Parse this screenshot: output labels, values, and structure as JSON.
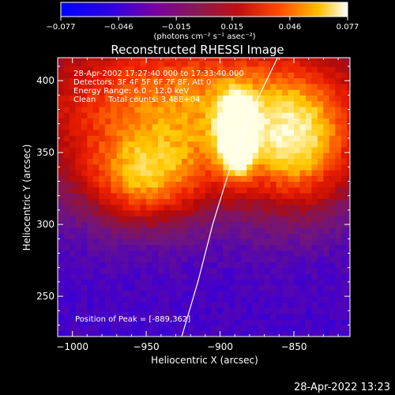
{
  "chart_data": {
    "type": "heatmap",
    "title": "Reconstructed RHESSI Image",
    "xlabel": "Heliocentric X (arcsec)",
    "ylabel": "Heliocentric Y (arcsec)",
    "xlim": [
      -1010,
      -812
    ],
    "ylim": [
      222,
      416
    ],
    "x_ticks": [
      -1000,
      -950,
      -900,
      -850
    ],
    "x_tick_labels": [
      "−1000",
      "−950",
      "−900",
      "−850"
    ],
    "y_ticks": [
      250,
      300,
      350,
      400
    ],
    "y_tick_labels": [
      "250",
      "300",
      "350",
      "400"
    ],
    "colorbar": {
      "range": [
        -0.077,
        0.077
      ],
      "ticks": [
        -0.077,
        -0.046,
        -0.015,
        0.015,
        0.046,
        0.077
      ],
      "tick_labels": [
        "−0.077",
        "−0.046",
        "−0.015",
        "0.015",
        "0.046",
        "0.077"
      ],
      "unit_text": "(photons cm⁻² s⁻¹ asec⁻²)"
    },
    "annotations": [
      "28-Apr-2002 17:27:40.000 to 17:33:40.000",
      "Detectors: 3F 4F 5F 6F 7F 8F, Att 0",
      "Energy Range: 6.0 - 12.0 keV",
      "Clean     Total counts: 3.48E+04"
    ],
    "peak_label": "Position of Peak = [-889,362]",
    "peak": {
      "x": -889,
      "y": 362
    },
    "limb_curve": [
      {
        "x": -926,
        "y": 222
      },
      {
        "x": -915,
        "y": 260
      },
      {
        "x": -905,
        "y": 300
      },
      {
        "x": -893,
        "y": 340
      },
      {
        "x": -878,
        "y": 380
      },
      {
        "x": -861,
        "y": 416
      }
    ],
    "sources": [
      {
        "x": -917,
        "y": 382,
        "sx": 90,
        "sy": 44,
        "amp": 0.046
      },
      {
        "x": -952,
        "y": 330,
        "sx": 28,
        "sy": 22,
        "amp": 0.012
      },
      {
        "x": -846,
        "y": 352,
        "sx": 26,
        "sy": 32,
        "amp": 0.012
      },
      {
        "x": -889,
        "y": 362,
        "sx": 8,
        "sy": 18,
        "amp": 0.06
      }
    ],
    "background": -0.05,
    "colors": {
      "scale": [
        "#0000ff",
        "#6a00b0",
        "#8a1a5a",
        "#c01010",
        "#ff4000",
        "#ffa000",
        "#ffff90",
        "#ffffff"
      ],
      "axes": "#ffffff"
    }
  },
  "footer": {
    "timestamp": "28-Apr-2022 13:23"
  }
}
